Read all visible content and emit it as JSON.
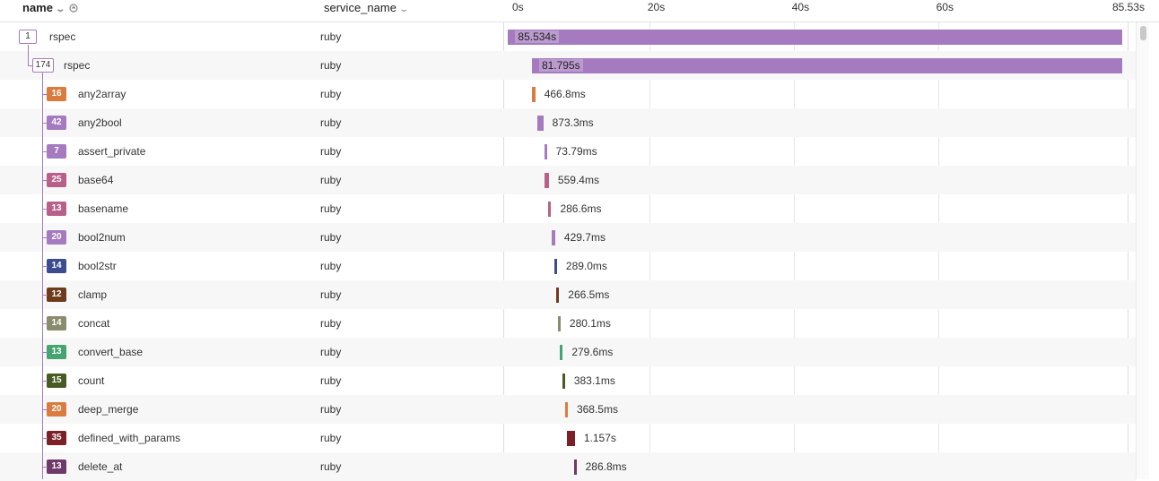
{
  "header": {
    "name_label": "name",
    "service_label": "service_name",
    "icons": [
      "chevron-down-icon",
      "sort-icon"
    ]
  },
  "axis": {
    "ticks": [
      {
        "label": "0s",
        "value": 0
      },
      {
        "label": "20s",
        "value": 20
      },
      {
        "label": "40s",
        "value": 40
      },
      {
        "label": "60s",
        "value": 60
      },
      {
        "label": "85.53s",
        "value": 85.53
      }
    ],
    "max_seconds": 85.534
  },
  "rows": [
    {
      "name": "rspec",
      "service": "ruby",
      "count": "1",
      "depth": 0,
      "start": 0.3,
      "duration": 85.534,
      "duration_label": "85.534s",
      "color": "#a57abf",
      "outline": true
    },
    {
      "name": "rspec",
      "service": "ruby",
      "count": "174",
      "depth": 1,
      "start": 3.6,
      "duration": 81.795,
      "duration_label": "81.795s",
      "color": "#a57abf",
      "outline": true
    },
    {
      "name": "any2array",
      "service": "ruby",
      "count": "16",
      "depth": 2,
      "start": 3.6,
      "duration": 0.4668,
      "duration_label": "466.8ms",
      "color": "#d97c3e"
    },
    {
      "name": "any2bool",
      "service": "ruby",
      "count": "42",
      "depth": 2,
      "start": 4.3,
      "duration": 0.8733,
      "duration_label": "873.3ms",
      "color": "#a57abf"
    },
    {
      "name": "assert_private",
      "service": "ruby",
      "count": "7",
      "depth": 2,
      "start": 5.3,
      "duration": 0.07379,
      "duration_label": "73.79ms",
      "color": "#a57abf"
    },
    {
      "name": "base64",
      "service": "ruby",
      "count": "25",
      "depth": 2,
      "start": 5.4,
      "duration": 0.5594,
      "duration_label": "559.4ms",
      "color": "#b8608a"
    },
    {
      "name": "basename",
      "service": "ruby",
      "count": "13",
      "depth": 2,
      "start": 5.9,
      "duration": 0.2866,
      "duration_label": "286.6ms",
      "color": "#b8608a"
    },
    {
      "name": "bool2num",
      "service": "ruby",
      "count": "20",
      "depth": 2,
      "start": 6.4,
      "duration": 0.4297,
      "duration_label": "429.7ms",
      "color": "#a57abf"
    },
    {
      "name": "bool2str",
      "service": "ruby",
      "count": "14",
      "depth": 2,
      "start": 6.7,
      "duration": 0.289,
      "duration_label": "289.0ms",
      "color": "#3d4c8f"
    },
    {
      "name": "clamp",
      "service": "ruby",
      "count": "12",
      "depth": 2,
      "start": 7.0,
      "duration": 0.2665,
      "duration_label": "266.5ms",
      "color": "#6e3b1c"
    },
    {
      "name": "concat",
      "service": "ruby",
      "count": "14",
      "depth": 2,
      "start": 7.2,
      "duration": 0.2801,
      "duration_label": "280.1ms",
      "color": "#8a8c6e"
    },
    {
      "name": "convert_base",
      "service": "ruby",
      "count": "13",
      "depth": 2,
      "start": 7.5,
      "duration": 0.2796,
      "duration_label": "279.6ms",
      "color": "#45a46f"
    },
    {
      "name": "count",
      "service": "ruby",
      "count": "15",
      "depth": 2,
      "start": 7.8,
      "duration": 0.3831,
      "duration_label": "383.1ms",
      "color": "#475c24"
    },
    {
      "name": "deep_merge",
      "service": "ruby",
      "count": "20",
      "depth": 2,
      "start": 8.2,
      "duration": 0.3685,
      "duration_label": "368.5ms",
      "color": "#d97c3e"
    },
    {
      "name": "defined_with_params",
      "service": "ruby",
      "count": "35",
      "depth": 2,
      "start": 8.4,
      "duration": 1.157,
      "duration_label": "1.157s",
      "color": "#7a2026"
    },
    {
      "name": "delete_at",
      "service": "ruby",
      "count": "13",
      "depth": 2,
      "start": 9.4,
      "duration": 0.2868,
      "duration_label": "286.8ms",
      "color": "#6e3a6a"
    }
  ]
}
